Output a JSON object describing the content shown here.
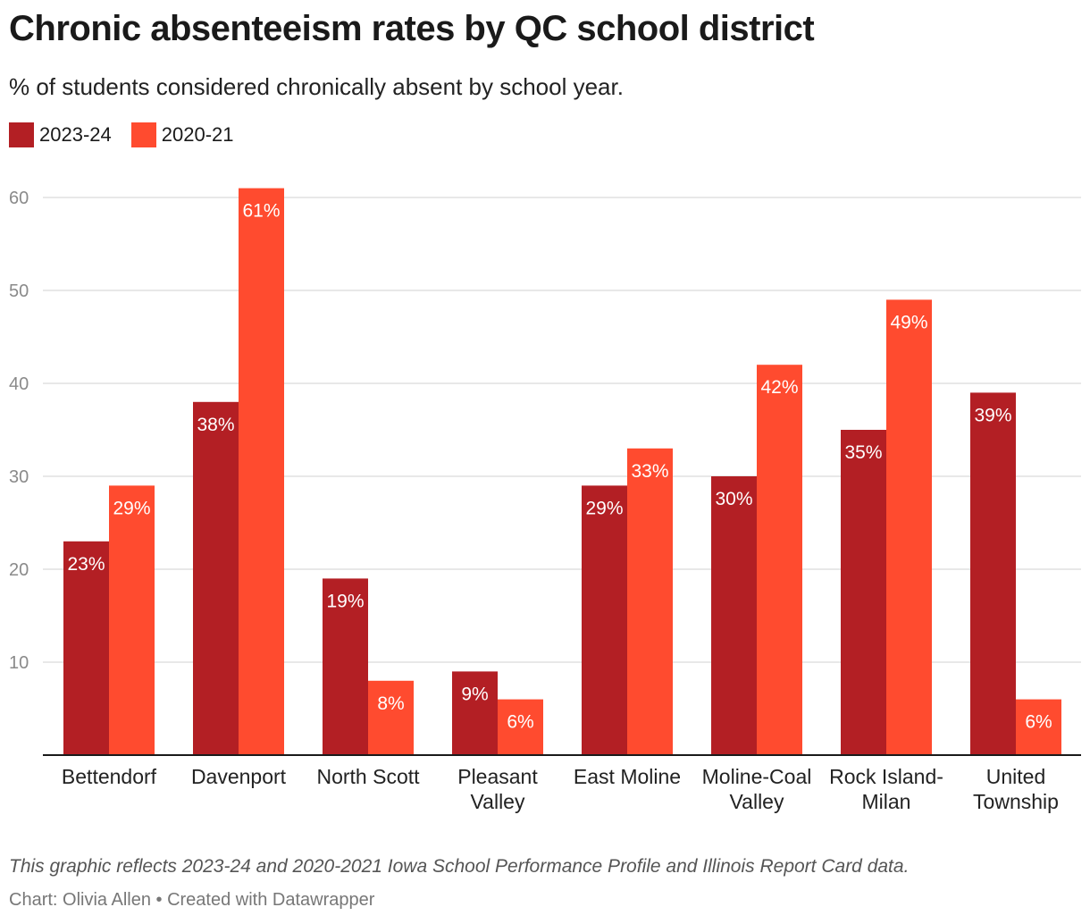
{
  "header": {
    "title": "Chronic absenteeism rates by QC school district",
    "subtitle": "% of students considered chronically absent by school year."
  },
  "colors": {
    "series_2023": "#b31f24",
    "series_2020": "#ff4b2f",
    "grid": "#e1e1e1",
    "axis": "#1a1a1a"
  },
  "chart_data": {
    "type": "bar",
    "title": "Chronic absenteeism rates by QC school district",
    "subtitle": "% of students considered chronically absent by school year.",
    "xlabel": "",
    "ylabel": "",
    "ylim": [
      0,
      60
    ],
    "yticks": [
      10,
      20,
      30,
      40,
      50,
      60
    ],
    "grid": true,
    "legend_position": "top-left",
    "value_suffix": "%",
    "categories": [
      [
        "Bettendorf"
      ],
      [
        "Davenport"
      ],
      [
        "North Scott"
      ],
      [
        "Pleasant",
        "Valley"
      ],
      [
        "East Moline"
      ],
      [
        "Moline-Coal",
        "Valley"
      ],
      [
        "Rock Island-",
        "Milan"
      ],
      [
        "United",
        "Township"
      ]
    ],
    "series": [
      {
        "name": "2023-24",
        "color": "#b31f24",
        "values": [
          23,
          38,
          19,
          9,
          29,
          30,
          35,
          39
        ]
      },
      {
        "name": "2020-21",
        "color": "#ff4b2f",
        "values": [
          29,
          61,
          8,
          6,
          33,
          42,
          49,
          6
        ]
      }
    ]
  },
  "footer": {
    "notes": "This graphic reflects 2023-24 and 2020-2021 Iowa School Performance Profile and Illinois Report Card data.",
    "byline": "Chart: Olivia Allen • Created with Datawrapper"
  }
}
